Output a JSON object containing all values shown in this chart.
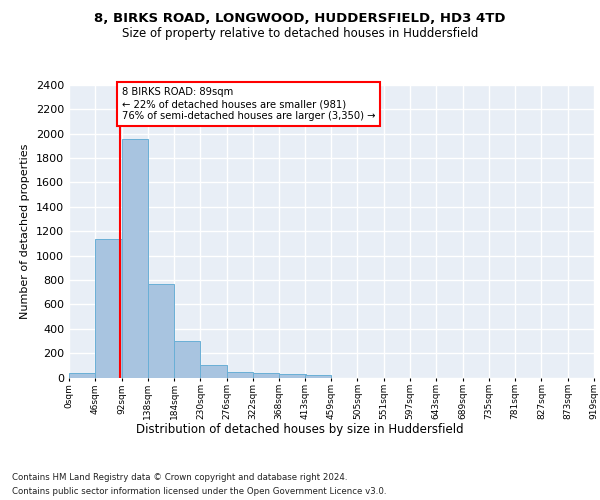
{
  "title1": "8, BIRKS ROAD, LONGWOOD, HUDDERSFIELD, HD3 4TD",
  "title2": "Size of property relative to detached houses in Huddersfield",
  "xlabel": "Distribution of detached houses by size in Huddersfield",
  "ylabel": "Number of detached properties",
  "bar_color": "#a8c4e0",
  "bar_edge_color": "#6aafd6",
  "property_line_color": "red",
  "property_sqm": 89,
  "annotation_line1": "8 BIRKS ROAD: 89sqm",
  "annotation_line2": "← 22% of detached houses are smaller (981)",
  "annotation_line3": "76% of semi-detached houses are larger (3,350) →",
  "bins": [
    0,
    46,
    92,
    138,
    184,
    230,
    276,
    322,
    368,
    413,
    459,
    505,
    551,
    597,
    643,
    689,
    735,
    781,
    827,
    873,
    919
  ],
  "counts": [
    35,
    1140,
    1960,
    770,
    300,
    100,
    45,
    38,
    28,
    18,
    0,
    0,
    0,
    0,
    0,
    0,
    0,
    0,
    0,
    0
  ],
  "ylim": [
    0,
    2400
  ],
  "yticks": [
    0,
    200,
    400,
    600,
    800,
    1000,
    1200,
    1400,
    1600,
    1800,
    2000,
    2200,
    2400
  ],
  "footnote1": "Contains HM Land Registry data © Crown copyright and database right 2024.",
  "footnote2": "Contains public sector information licensed under the Open Government Licence v3.0.",
  "background_color": "#e8eef6",
  "grid_color": "white"
}
